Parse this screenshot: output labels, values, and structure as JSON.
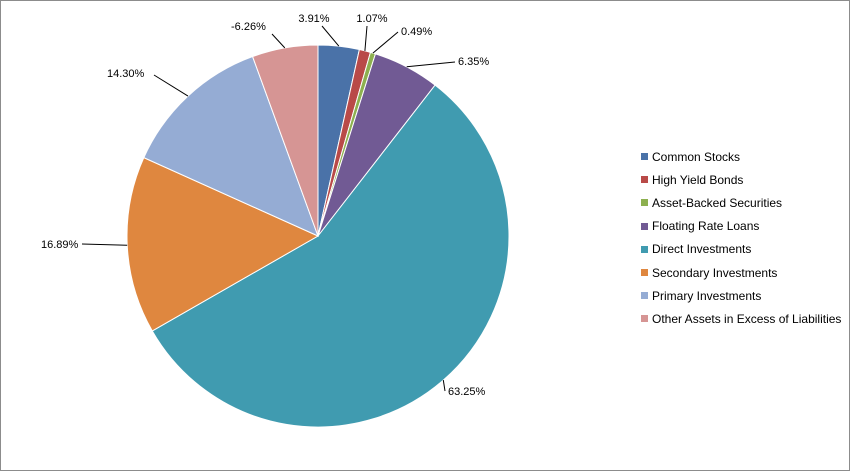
{
  "chart_data": {
    "type": "pie",
    "title": "",
    "legend_position": "right",
    "slices": [
      {
        "label": "Common Stocks",
        "value": 3.91,
        "display": "3.91%",
        "color": "#4a72a8"
      },
      {
        "label": "High Yield Bonds",
        "value": 1.07,
        "display": "1.07%",
        "color": "#b94a48"
      },
      {
        "label": "Asset-Backed Securities",
        "value": 0.49,
        "display": "0.49%",
        "color": "#8db04f"
      },
      {
        "label": "Floating Rate Loans",
        "value": 6.35,
        "display": "6.35%",
        "color": "#715a94"
      },
      {
        "label": "Direct Investments",
        "value": 63.25,
        "display": "63.25%",
        "color": "#409bb0"
      },
      {
        "label": "Secondary Investments",
        "value": 16.89,
        "display": "16.89%",
        "color": "#df873f"
      },
      {
        "label": "Primary Investments",
        "value": 14.3,
        "display": "14.30%",
        "color": "#95acd4"
      },
      {
        "label": "Other Assets in Excess of Liabilities",
        "value": 6.26,
        "display": "-6.26%",
        "color": "#d69594"
      }
    ]
  }
}
